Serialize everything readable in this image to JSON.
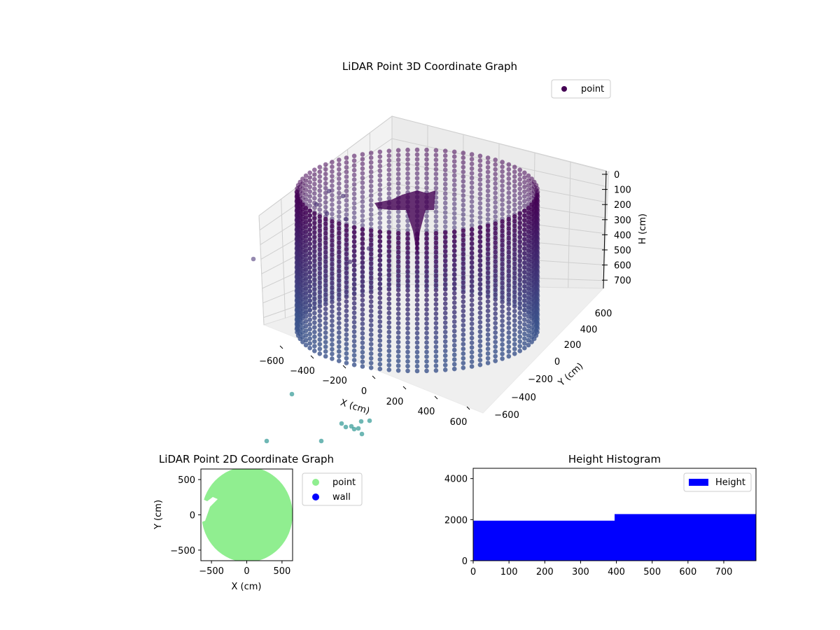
{
  "colors": {
    "point_dark": "#440154",
    "point_mid": "#3b528b",
    "point_teal": "#21918c",
    "point_2d": "#90ee90",
    "wall": "#0000ff",
    "histogram": "#0000ff",
    "pane": "#f2f2f2",
    "grid": "#cccccc"
  },
  "chart_data": [
    {
      "type": "scatter",
      "title": "LiDAR Point 3D Coordinate Graph",
      "xlabel": "X (cm)",
      "ylabel": "Y (cm)",
      "zlabel": "H (cm)",
      "xlim": [
        -650,
        650
      ],
      "ylim": [
        -650,
        650
      ],
      "zlim": [
        0,
        750
      ],
      "z_inverted": true,
      "xticks": [
        "−600",
        "−400",
        "−200",
        "0",
        "200",
        "400",
        "600"
      ],
      "yticks": [
        "−600",
        "−400",
        "−200",
        "0",
        "200",
        "400",
        "600"
      ],
      "zticks": [
        "0",
        "100",
        "200",
        "300",
        "400",
        "500",
        "600",
        "700"
      ],
      "legend": {
        "position": "top-right",
        "entries": [
          "point"
        ]
      },
      "description": "cylindrical wall of points, radius about 600 cm, height 0 to 750 cm",
      "series": [
        {
          "name": "point",
          "radius_cm": 600,
          "height_range_cm": [
            0,
            750
          ]
        }
      ],
      "grid": true
    },
    {
      "type": "scatter",
      "title": "LiDAR Point 2D Coordinate Graph",
      "xlabel": "X (cm)",
      "ylabel": "Y (cm)",
      "xlim": [
        -650,
        650
      ],
      "ylim": [
        -650,
        650
      ],
      "xticks": [
        "−500",
        "0",
        "500"
      ],
      "yticks": [
        "−500",
        "0",
        "500"
      ],
      "legend": {
        "position": "outside-right",
        "entries": [
          "point",
          "wall"
        ]
      },
      "series": [
        {
          "name": "point"
        },
        {
          "name": "wall"
        }
      ],
      "grid": false
    },
    {
      "type": "bar",
      "title": "Height Histogram",
      "xlim": [
        0,
        790
      ],
      "ylim": [
        0,
        4500
      ],
      "xticks": [
        "0",
        "100",
        "200",
        "300",
        "400",
        "500",
        "600",
        "700"
      ],
      "yticks": [
        "0",
        "2000",
        "4000"
      ],
      "bins": [
        {
          "x0": 0,
          "x1": 395,
          "count": 1950
        },
        {
          "x0": 395,
          "x1": 790,
          "count": 2270
        }
      ],
      "legend": {
        "position": "top-right",
        "entries": [
          "Height"
        ]
      },
      "series": [
        {
          "name": "Height"
        }
      ],
      "grid": false
    }
  ]
}
